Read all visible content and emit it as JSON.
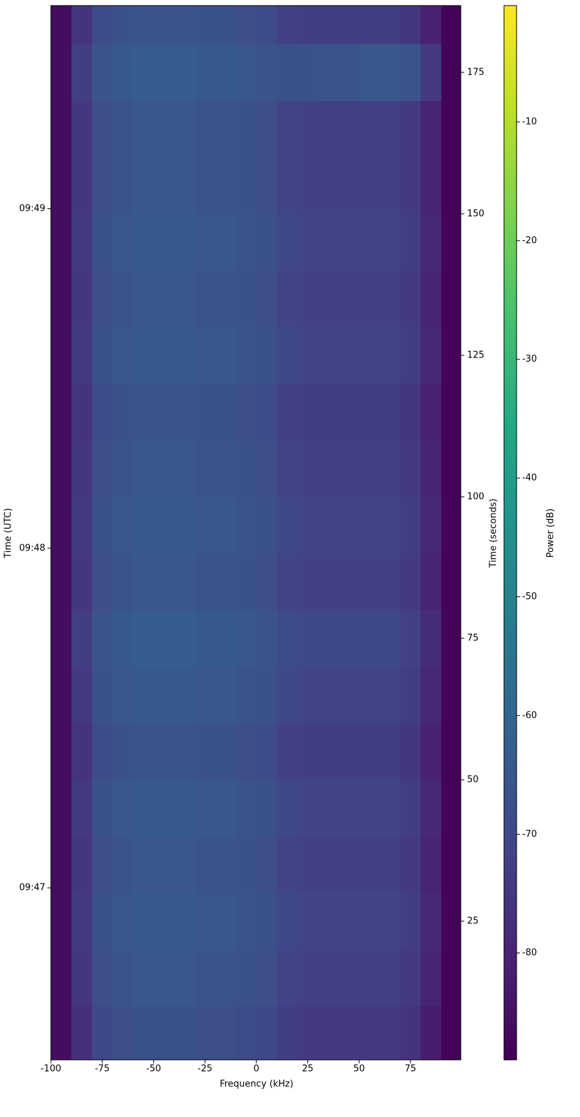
{
  "chart_data": {
    "type": "heatmap",
    "xlabel": "Frequency (kHz)",
    "ylabel": "Time (UTC)",
    "y2label": "Time (seconds)",
    "colorbar_label": "Power (dB)",
    "colormap": "viridis",
    "xlim": [
      -100,
      99.5
    ],
    "xticks": [
      -100,
      -75,
      -50,
      -25,
      0,
      25,
      50,
      75
    ],
    "ylim": [
      0.5,
      186.8
    ],
    "yticks": [
      {
        "value": 30.9,
        "label": "09:47"
      },
      {
        "value": 90.9,
        "label": "09:48"
      },
      {
        "value": 150.9,
        "label": "09:49"
      }
    ],
    "y2lim": [
      0.5,
      186.8
    ],
    "y2ticks": [
      25,
      50,
      75,
      100,
      125,
      150,
      175
    ],
    "clim": [
      -89,
      -0.2
    ],
    "cticks": [
      -80,
      -70,
      -60,
      -50,
      -40,
      -30,
      -20,
      -10
    ],
    "xbins": [
      -100,
      -90,
      -80,
      -70,
      -60,
      -50,
      -40,
      -30,
      -20,
      -10,
      0,
      10,
      20,
      30,
      40,
      50,
      60,
      70,
      80,
      90,
      99.5
    ],
    "ybins": [
      0.5,
      10,
      20,
      30,
      40,
      50,
      60,
      70,
      80,
      90,
      100,
      110,
      120,
      130,
      140,
      150,
      160,
      170,
      180,
      186.8
    ],
    "values": [
      [
        -86,
        -77,
        -70,
        -68,
        -67,
        -67,
        -67,
        -68,
        -68,
        -69,
        -70,
        -73,
        -74,
        -74,
        -74,
        -74,
        -74,
        -76,
        -82,
        -88
      ],
      [
        -86,
        -75,
        -68,
        -66,
        -65,
        -65,
        -65,
        -66,
        -66,
        -67,
        -68,
        -71,
        -72,
        -72,
        -72,
        -72,
        -72,
        -74,
        -80,
        -88
      ],
      [
        -86,
        -74,
        -67,
        -65,
        -64,
        -64,
        -64,
        -65,
        -65,
        -66,
        -67,
        -70,
        -71,
        -71,
        -71,
        -71,
        -71,
        -73,
        -79,
        -88
      ],
      [
        -86,
        -75,
        -68,
        -66,
        -65,
        -65,
        -65,
        -66,
        -66,
        -67,
        -68,
        -71,
        -72,
        -72,
        -72,
        -72,
        -72,
        -74,
        -80,
        -88
      ],
      [
        -86,
        -74,
        -67,
        -65,
        -64,
        -64,
        -64,
        -65,
        -65,
        -66,
        -67,
        -70,
        -71,
        -71,
        -71,
        -71,
        -71,
        -73,
        -79,
        -88
      ],
      [
        -86,
        -76,
        -69,
        -67,
        -66,
        -66,
        -66,
        -67,
        -67,
        -68,
        -69,
        -72,
        -73,
        -73,
        -73,
        -73,
        -73,
        -75,
        -81,
        -88
      ],
      [
        -86,
        -74,
        -67,
        -65,
        -64,
        -64,
        -64,
        -65,
        -65,
        -66,
        -67,
        -70,
        -71,
        -71,
        -71,
        -71,
        -71,
        -73,
        -79,
        -88
      ],
      [
        -86,
        -73,
        -66,
        -64,
        -63,
        -63,
        -63,
        -64,
        -64,
        -65,
        -66,
        -69,
        -70,
        -70,
        -70,
        -70,
        -70,
        -72,
        -78,
        -88
      ],
      [
        -86,
        -75,
        -68,
        -66,
        -65,
        -65,
        -65,
        -66,
        -66,
        -67,
        -68,
        -71,
        -72,
        -72,
        -72,
        -72,
        -72,
        -74,
        -80,
        -88
      ],
      [
        -86,
        -74,
        -67,
        -65,
        -64,
        -64,
        -64,
        -65,
        -65,
        -66,
        -67,
        -70,
        -71,
        -71,
        -71,
        -71,
        -71,
        -73,
        -79,
        -88
      ],
      [
        -86,
        -75,
        -68,
        -66,
        -65,
        -65,
        -65,
        -66,
        -66,
        -67,
        -68,
        -71,
        -72,
        -72,
        -72,
        -72,
        -72,
        -74,
        -80,
        -88
      ],
      [
        -86,
        -76,
        -69,
        -67,
        -66,
        -66,
        -66,
        -67,
        -67,
        -68,
        -69,
        -72,
        -73,
        -73,
        -73,
        -73,
        -73,
        -75,
        -81,
        -88
      ],
      [
        -86,
        -74,
        -67,
        -65,
        -64,
        -64,
        -64,
        -65,
        -65,
        -66,
        -67,
        -70,
        -71,
        -71,
        -71,
        -71,
        -71,
        -73,
        -79,
        -88
      ],
      [
        -86,
        -75,
        -68,
        -66,
        -65,
        -65,
        -65,
        -66,
        -66,
        -67,
        -68,
        -71,
        -72,
        -72,
        -72,
        -72,
        -72,
        -74,
        -80,
        -88
      ],
      [
        -86,
        -74,
        -67,
        -65,
        -64,
        -64,
        -64,
        -65,
        -65,
        -66,
        -67,
        -70,
        -71,
        -71,
        -71,
        -71,
        -71,
        -73,
        -79,
        -88
      ],
      [
        -86,
        -75,
        -68,
        -66,
        -65,
        -65,
        -65,
        -66,
        -66,
        -67,
        -68,
        -71,
        -72,
        -72,
        -72,
        -72,
        -72,
        -74,
        -80,
        -88
      ],
      [
        -86,
        -75,
        -68,
        -66,
        -65,
        -65,
        -65,
        -66,
        -66,
        -67,
        -68,
        -71,
        -72,
        -72,
        -72,
        -72,
        -72,
        -74,
        -80,
        -88
      ],
      [
        -86,
        -73,
        -66,
        -64,
        -63,
        -63,
        -63,
        -64,
        -64,
        -65,
        -66,
        -67,
        -67,
        -66,
        -66,
        -65,
        -65,
        -66,
        -74,
        -88
      ],
      [
        -86,
        -76,
        -69,
        -67,
        -66,
        -66,
        -66,
        -67,
        -67,
        -68,
        -69,
        -72,
        -73,
        -73,
        -73,
        -73,
        -73,
        -75,
        -81,
        -88
      ]
    ]
  }
}
